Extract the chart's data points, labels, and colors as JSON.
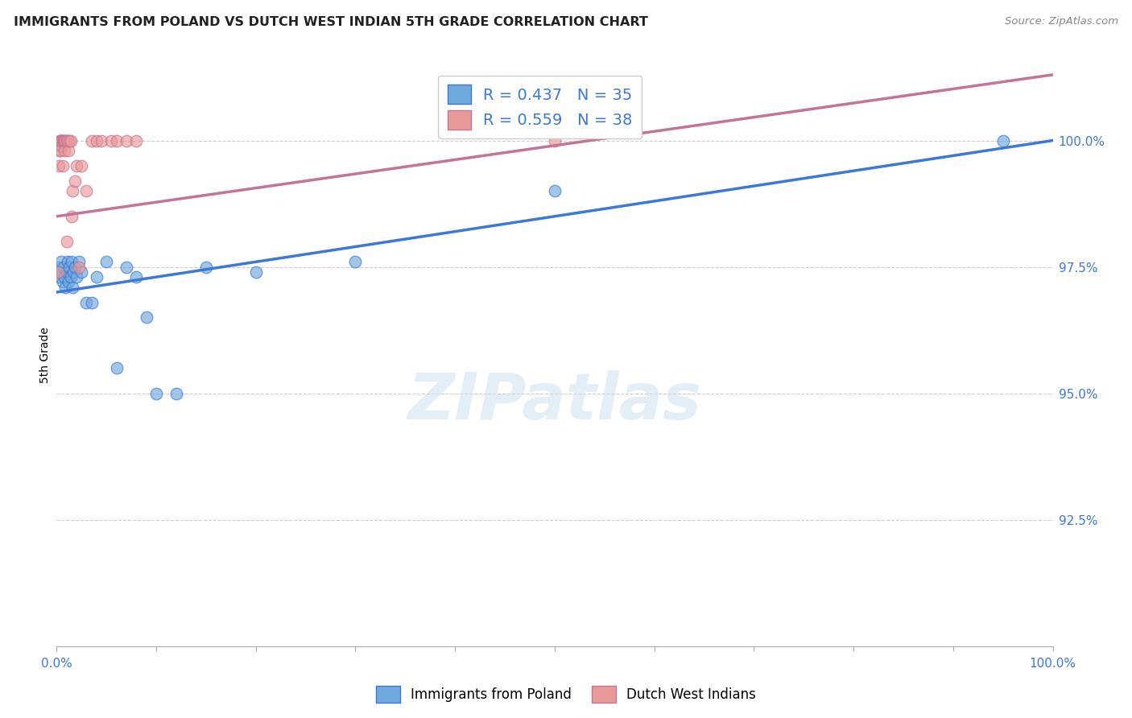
{
  "title": "IMMIGRANTS FROM POLAND VS DUTCH WEST INDIAN 5TH GRADE CORRELATION CHART",
  "source": "Source: ZipAtlas.com",
  "ylabel": "5th Grade",
  "yticks": [
    90.0,
    92.5,
    95.0,
    97.5,
    100.0
  ],
  "ytick_labels": [
    "",
    "92.5%",
    "95.0%",
    "97.5%",
    "100.0%"
  ],
  "xlim": [
    0.0,
    100.0
  ],
  "ylim": [
    90.0,
    101.5
  ],
  "legend_label_blue": "Immigrants from Poland",
  "legend_label_pink": "Dutch West Indians",
  "R_blue": 0.437,
  "N_blue": 35,
  "R_pink": 0.559,
  "N_pink": 38,
  "color_blue": "#6fa8dc",
  "color_pink": "#ea9999",
  "color_blue_line": "#3c78d8",
  "color_pink_line": "#c47494",
  "watermark": "ZIPatlas",
  "blue_x": [
    0.2,
    0.3,
    0.4,
    0.5,
    0.6,
    0.7,
    0.8,
    0.9,
    1.0,
    1.1,
    1.2,
    1.3,
    1.4,
    1.5,
    1.6,
    1.7,
    1.8,
    2.0,
    2.2,
    2.5,
    3.0,
    3.5,
    4.0,
    5.0,
    6.0,
    7.0,
    8.0,
    9.0,
    10.0,
    12.0,
    15.0,
    20.0,
    30.0,
    50.0,
    95.0
  ],
  "blue_y": [
    97.5,
    97.3,
    97.4,
    97.6,
    97.2,
    97.5,
    97.3,
    97.1,
    97.4,
    97.6,
    97.2,
    97.5,
    97.3,
    97.6,
    97.1,
    97.4,
    97.5,
    97.3,
    97.6,
    97.4,
    96.8,
    96.8,
    97.3,
    97.6,
    95.5,
    97.5,
    97.3,
    96.5,
    95.0,
    95.0,
    97.5,
    97.4,
    97.6,
    99.0,
    100.0
  ],
  "pink_x": [
    0.1,
    0.2,
    0.3,
    0.3,
    0.4,
    0.4,
    0.4,
    0.5,
    0.5,
    0.5,
    0.6,
    0.6,
    0.7,
    0.7,
    0.8,
    0.8,
    0.9,
    1.0,
    1.0,
    1.1,
    1.2,
    1.3,
    1.4,
    1.5,
    1.6,
    1.8,
    2.0,
    2.2,
    2.5,
    3.0,
    3.5,
    4.0,
    4.5,
    5.5,
    6.0,
    7.0,
    8.0,
    50.0
  ],
  "pink_y": [
    97.4,
    99.5,
    99.8,
    100.0,
    100.0,
    100.0,
    99.8,
    100.0,
    99.9,
    100.0,
    100.0,
    99.5,
    100.0,
    100.0,
    100.0,
    99.8,
    100.0,
    100.0,
    98.0,
    100.0,
    99.8,
    100.0,
    100.0,
    98.5,
    99.0,
    99.2,
    99.5,
    97.5,
    99.5,
    99.0,
    100.0,
    100.0,
    100.0,
    100.0,
    100.0,
    100.0,
    100.0,
    100.0
  ],
  "blue_line_x0": 0.0,
  "blue_line_y0": 97.0,
  "blue_line_x1": 100.0,
  "blue_line_y1": 100.0,
  "pink_line_x0": 0.0,
  "pink_line_y0": 98.5,
  "pink_line_x1": 100.0,
  "pink_line_y1": 101.3
}
